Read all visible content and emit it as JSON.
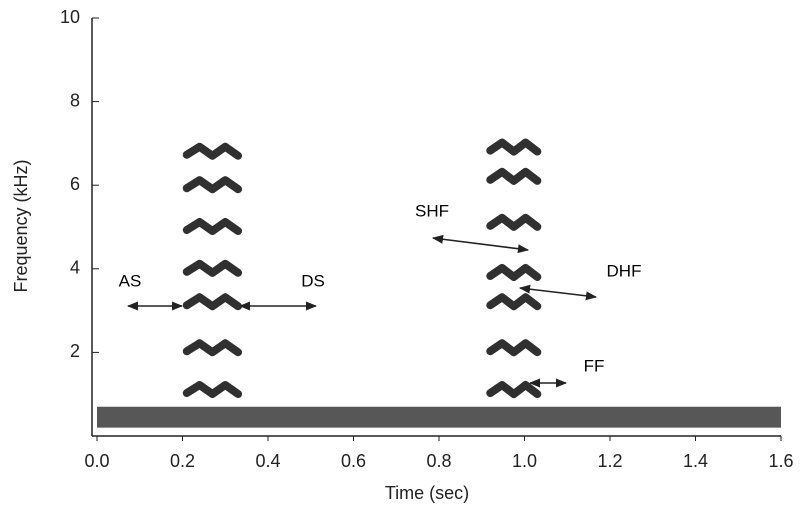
{
  "chart_data": {
    "type": "spectrogram",
    "x_label": "Time (sec)",
    "y_label": "Frequency (kHz)",
    "xlim": [
      0,
      1.6
    ],
    "xticks": [
      {
        "value": 0,
        "label": "0.0"
      },
      0.2,
      0.4,
      0.6,
      0.8,
      {
        "value": 1,
        "label": "1.0"
      },
      1.2,
      1.4,
      1.6
    ],
    "ylim": [
      0,
      10
    ],
    "yticks": [
      2,
      4,
      6,
      8,
      10
    ],
    "color": "#1a1a1a",
    "calls": [
      {
        "start": 0.21,
        "end": 0.33,
        "harmonics": [
          1.1,
          2.1,
          3.2,
          4.0,
          5.0,
          6.0,
          6.8
        ]
      },
      {
        "start": 0.92,
        "end": 1.03,
        "harmonics": [
          1.1,
          2.1,
          3.2,
          3.9,
          5.1,
          6.2,
          6.9
        ]
      }
    ],
    "noise_band": {
      "x": [
        0,
        1.6
      ],
      "y": [
        0.2,
        0.7
      ]
    },
    "annotations": [
      "AS",
      "DS",
      "SHF",
      "DHF",
      "FF"
    ]
  }
}
